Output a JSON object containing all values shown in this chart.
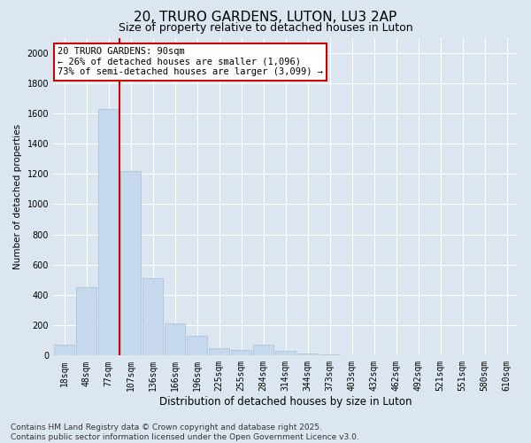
{
  "title1": "20, TRURO GARDENS, LUTON, LU3 2AP",
  "title2": "Size of property relative to detached houses in Luton",
  "xlabel": "Distribution of detached houses by size in Luton",
  "ylabel": "Number of detached properties",
  "categories": [
    "18sqm",
    "48sqm",
    "77sqm",
    "107sqm",
    "136sqm",
    "166sqm",
    "196sqm",
    "225sqm",
    "255sqm",
    "284sqm",
    "314sqm",
    "344sqm",
    "373sqm",
    "403sqm",
    "432sqm",
    "462sqm",
    "492sqm",
    "521sqm",
    "551sqm",
    "580sqm",
    "610sqm"
  ],
  "values": [
    75,
    450,
    1630,
    1220,
    510,
    215,
    130,
    50,
    35,
    75,
    30,
    15,
    5,
    2,
    1,
    1,
    0,
    0,
    0,
    0,
    0
  ],
  "bar_color": "#c5d8ed",
  "bar_edge_color": "#a8bfd4",
  "vline_x": 2.5,
  "vline_color": "#cc0000",
  "annotation_text": "20 TRURO GARDENS: 90sqm\n← 26% of detached houses are smaller (1,096)\n73% of semi-detached houses are larger (3,099) →",
  "annotation_box_facecolor": "#ffffff",
  "annotation_box_edgecolor": "#cc0000",
  "ylim": [
    0,
    2100
  ],
  "yticks": [
    0,
    200,
    400,
    600,
    800,
    1000,
    1200,
    1400,
    1600,
    1800,
    2000
  ],
  "background_color": "#dce6f0",
  "grid_color": "#ffffff",
  "footer": "Contains HM Land Registry data © Crown copyright and database right 2025.\nContains public sector information licensed under the Open Government Licence v3.0.",
  "title1_fontsize": 11,
  "title2_fontsize": 9,
  "xlabel_fontsize": 8.5,
  "ylabel_fontsize": 7.5,
  "tick_fontsize": 7,
  "annot_fontsize": 7.5,
  "footer_fontsize": 6.5
}
